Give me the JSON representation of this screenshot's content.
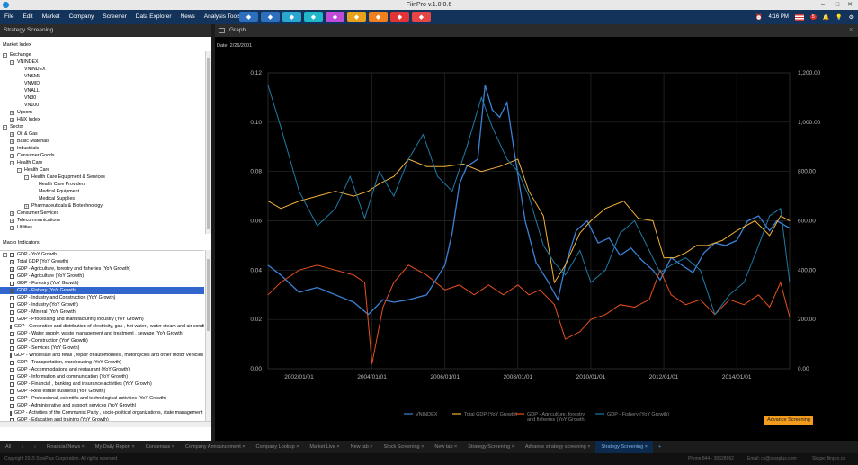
{
  "app": {
    "title": "FiinPro v.1.0.0.6"
  },
  "menu": [
    "File",
    "Edit",
    "Market",
    "Company",
    "Screener",
    "Data Explorer",
    "News",
    "Analysis Tools"
  ],
  "header": {
    "time": "4:16 PM",
    "notification_count": "5"
  },
  "toolbar": [
    {
      "icon": "refresh-icon",
      "color": "#2d6fbe"
    },
    {
      "icon": "filter-icon",
      "color": "#2d6fbe"
    },
    {
      "icon": "chart-icon",
      "color": "#2aa7d0"
    },
    {
      "icon": "monitor-icon",
      "color": "#1fb7c9"
    },
    {
      "icon": "people-icon",
      "color": "#c04bd8"
    },
    {
      "icon": "factory-icon",
      "color": "#e8a11a"
    },
    {
      "icon": "document-icon",
      "color": "#f07f1d"
    },
    {
      "icon": "target-icon",
      "color": "#e23434"
    },
    {
      "icon": "gift-icon",
      "color": "#e64545"
    }
  ],
  "left_panel": {
    "title": "Strategy Screening",
    "market_index_label": "Market Index",
    "macro_label": "Macro Indicators",
    "market_tree": [
      {
        "label": "Exchange",
        "level": 0,
        "exp": "-"
      },
      {
        "label": "VNINDEX",
        "level": 1,
        "exp": "-"
      },
      {
        "label": "VNINDEX",
        "level": 2,
        "exp": ""
      },
      {
        "label": "VNSML",
        "level": 2,
        "exp": ""
      },
      {
        "label": "VNMID",
        "level": 2,
        "exp": ""
      },
      {
        "label": "VNALL",
        "level": 2,
        "exp": ""
      },
      {
        "label": "VN30",
        "level": 2,
        "exp": ""
      },
      {
        "label": "VN100",
        "level": 2,
        "exp": ""
      },
      {
        "label": "Upcom",
        "level": 1,
        "exp": "+"
      },
      {
        "label": "HNX Index",
        "level": 1,
        "exp": "+"
      },
      {
        "label": "Sector",
        "level": 0,
        "exp": "-"
      },
      {
        "label": "Oil & Gas",
        "level": 1,
        "exp": "+"
      },
      {
        "label": "Basic Materials",
        "level": 1,
        "exp": "+"
      },
      {
        "label": "Industrials",
        "level": 1,
        "exp": "+"
      },
      {
        "label": "Consumer Goods",
        "level": 1,
        "exp": "+"
      },
      {
        "label": "Health Care",
        "level": 1,
        "exp": "-"
      },
      {
        "label": "Health Care",
        "level": 2,
        "exp": "-"
      },
      {
        "label": "Health Care Equipment & Services",
        "level": 3,
        "exp": "-"
      },
      {
        "label": "Health Care Providers",
        "level": 4,
        "exp": ""
      },
      {
        "label": "Medical Equipment",
        "level": 4,
        "exp": ""
      },
      {
        "label": "Medical Supplies",
        "level": 4,
        "exp": ""
      },
      {
        "label": "Pharmaceuticals & Biotechnology",
        "level": 3,
        "exp": "+"
      },
      {
        "label": "Consumer Services",
        "level": 1,
        "exp": "+"
      },
      {
        "label": "Telecommunications",
        "level": 1,
        "exp": "+"
      },
      {
        "label": "Utilities",
        "level": 1,
        "exp": "+"
      }
    ],
    "macro_tree": [
      {
        "label": "GDP - YoY Growth",
        "level": 0,
        "exp": "-",
        "cb": ""
      },
      {
        "label": "Total GDP (YoY Growth)",
        "level": 1,
        "cb": "✓"
      },
      {
        "label": "GDP - Agriculture, forestry and fisheries (YoY Growth)",
        "level": 1,
        "cb": "✓"
      },
      {
        "label": "GDP - Agriculture (YoY Growth)",
        "level": 1,
        "cb": ""
      },
      {
        "label": "GDP - Forestry (YoY Growth)",
        "level": 1,
        "cb": ""
      },
      {
        "label": "GDP - Fishery (YoY Growth)",
        "level": 1,
        "cb": "✓",
        "sel": true
      },
      {
        "label": "GDP - Industry and Construction (YoY Growth)",
        "level": 1,
        "cb": ""
      },
      {
        "label": "GDP - Industry (YoY Growth)",
        "level": 1,
        "cb": ""
      },
      {
        "label": "GDP - Mineral (YoY Growth)",
        "level": 1,
        "cb": ""
      },
      {
        "label": "GDP - Processing and manufacturing industry (YoY Growth)",
        "level": 1,
        "cb": ""
      },
      {
        "label": "GDP - Generation and distribution of electricity, gas , hot water , water steam and air conditioning (YoY Growth)",
        "level": 1,
        "cb": ""
      },
      {
        "label": "GDP - Water supply, waste management and treatment , sewage (YoY Growth)",
        "level": 1,
        "cb": ""
      },
      {
        "label": "GDP - Construction (YoY Growth)",
        "level": 1,
        "cb": ""
      },
      {
        "label": "GDP - Services (YoY Growth)",
        "level": 1,
        "cb": ""
      },
      {
        "label": "GDP - Wholesale and retail , repair of automobiles , motorcycles and other motor vehicles (YoY Growth)",
        "level": 1,
        "cb": ""
      },
      {
        "label": "GDP - Transportation, warehousing (YoY Growth)",
        "level": 1,
        "cb": ""
      },
      {
        "label": "GDP - Accommodations and restaurant (YoY Growth)",
        "level": 1,
        "cb": ""
      },
      {
        "label": "GDP - Information and communication (YoY Growth)",
        "level": 1,
        "cb": ""
      },
      {
        "label": "GDP - Financial , banking and insurance activities (YoY Growth)",
        "level": 1,
        "cb": ""
      },
      {
        "label": "GDP - Real estate business (YoY Growth)",
        "level": 1,
        "cb": ""
      },
      {
        "label": "GDP - Professional, scientific and technological activities (YoY Growth)",
        "level": 1,
        "cb": ""
      },
      {
        "label": "GDP - Administrative and support services (YoY Growth)",
        "level": 1,
        "cb": ""
      },
      {
        "label": "GDP - Activities of the Communist Party , socio-political organizations, state management (YoY Growth)",
        "level": 1,
        "cb": ""
      },
      {
        "label": "GDP - Education and training (YoY Growth)",
        "level": 1,
        "cb": ""
      }
    ]
  },
  "graph": {
    "title": "Graph",
    "date": "Date: 2/26/2001",
    "adv_button": "Advance Screening"
  },
  "chart_data": {
    "type": "line",
    "x_ticks": [
      "2002/01/01",
      "2004/01/01",
      "2006/01/01",
      "2008/01/01",
      "2010/01/01",
      "2012/01/01",
      "2014/01/01"
    ],
    "y_left_ticks": [
      "0.00",
      "0.02",
      "0.04",
      "0.06",
      "0.08",
      "0.10",
      "0.12"
    ],
    "y_right_ticks": [
      "0.00",
      "200.00",
      "400.00",
      "600.00",
      "800.00",
      "1,000.00",
      "1,200.00"
    ],
    "y_left_range": [
      0,
      0.12
    ],
    "y_right_range": [
      0,
      1200
    ],
    "x_range": [
      2001.15,
      2015.45
    ],
    "grid": true,
    "legend_position": "bottom",
    "series": [
      {
        "name": "VNINDEX",
        "axis": "right",
        "color": "#3b82d6",
        "points": [
          [
            2001.15,
            420
          ],
          [
            2001.5,
            380
          ],
          [
            2002.0,
            310
          ],
          [
            2002.5,
            330
          ],
          [
            2003.0,
            300
          ],
          [
            2003.5,
            270
          ],
          [
            2003.9,
            220
          ],
          [
            2004.1,
            250
          ],
          [
            2004.3,
            280
          ],
          [
            2004.6,
            270
          ],
          [
            2005.0,
            280
          ],
          [
            2005.5,
            300
          ],
          [
            2006.0,
            420
          ],
          [
            2006.2,
            550
          ],
          [
            2006.4,
            750
          ],
          [
            2006.6,
            820
          ],
          [
            2006.9,
            850
          ],
          [
            2007.1,
            1150
          ],
          [
            2007.3,
            1050
          ],
          [
            2007.5,
            1020
          ],
          [
            2007.7,
            1080
          ],
          [
            2007.9,
            880
          ],
          [
            2008.2,
            600
          ],
          [
            2008.5,
            430
          ],
          [
            2008.8,
            360
          ],
          [
            2009.1,
            280
          ],
          [
            2009.3,
            420
          ],
          [
            2009.6,
            560
          ],
          [
            2009.9,
            600
          ],
          [
            2010.2,
            510
          ],
          [
            2010.5,
            530
          ],
          [
            2010.8,
            460
          ],
          [
            2011.1,
            490
          ],
          [
            2011.4,
            440
          ],
          [
            2011.7,
            400
          ],
          [
            2011.9,
            360
          ],
          [
            2012.2,
            450
          ],
          [
            2012.5,
            420
          ],
          [
            2012.8,
            390
          ],
          [
            2013.1,
            470
          ],
          [
            2013.4,
            510
          ],
          [
            2013.7,
            500
          ],
          [
            2014.0,
            520
          ],
          [
            2014.3,
            600
          ],
          [
            2014.6,
            620
          ],
          [
            2014.9,
            560
          ],
          [
            2015.1,
            600
          ],
          [
            2015.45,
            570
          ]
        ]
      },
      {
        "name": "Total GDP (YoY Growth)",
        "axis": "left",
        "color": "#f3b23a",
        "points": [
          [
            2001.15,
            0.068
          ],
          [
            2001.5,
            0.065
          ],
          [
            2002.0,
            0.068
          ],
          [
            2002.5,
            0.07
          ],
          [
            2003.0,
            0.072
          ],
          [
            2003.5,
            0.07
          ],
          [
            2003.9,
            0.072
          ],
          [
            2004.2,
            0.075
          ],
          [
            2004.6,
            0.078
          ],
          [
            2005.0,
            0.085
          ],
          [
            2005.5,
            0.082
          ],
          [
            2006.0,
            0.082
          ],
          [
            2006.5,
            0.083
          ],
          [
            2007.0,
            0.08
          ],
          [
            2007.5,
            0.082
          ],
          [
            2008.0,
            0.085
          ],
          [
            2008.3,
            0.072
          ],
          [
            2008.7,
            0.062
          ],
          [
            2009.0,
            0.035
          ],
          [
            2009.3,
            0.042
          ],
          [
            2009.7,
            0.055
          ],
          [
            2010.0,
            0.06
          ],
          [
            2010.4,
            0.065
          ],
          [
            2010.9,
            0.068
          ],
          [
            2011.3,
            0.061
          ],
          [
            2011.7,
            0.06
          ],
          [
            2012.0,
            0.045
          ],
          [
            2012.3,
            0.045
          ],
          [
            2012.6,
            0.047
          ],
          [
            2012.9,
            0.05
          ],
          [
            2013.2,
            0.05
          ],
          [
            2013.6,
            0.052
          ],
          [
            2014.0,
            0.056
          ],
          [
            2014.5,
            0.06
          ],
          [
            2014.9,
            0.054
          ],
          [
            2015.2,
            0.062
          ],
          [
            2015.45,
            0.06
          ]
        ]
      },
      {
        "name": "GDP - Agriculture, forestry and fisheries (YoY Growth)",
        "axis": "left",
        "color": "#e8501f",
        "points": [
          [
            2001.15,
            0.03
          ],
          [
            2001.5,
            0.035
          ],
          [
            2002.0,
            0.04
          ],
          [
            2002.5,
            0.042
          ],
          [
            2003.0,
            0.04
          ],
          [
            2003.5,
            0.038
          ],
          [
            2003.8,
            0.035
          ],
          [
            2004.0,
            0.002
          ],
          [
            2004.3,
            0.025
          ],
          [
            2004.6,
            0.035
          ],
          [
            2005.0,
            0.042
          ],
          [
            2005.5,
            0.038
          ],
          [
            2006.0,
            0.032
          ],
          [
            2006.4,
            0.034
          ],
          [
            2006.8,
            0.03
          ],
          [
            2007.2,
            0.034
          ],
          [
            2007.6,
            0.03
          ],
          [
            2008.0,
            0.034
          ],
          [
            2008.3,
            0.03
          ],
          [
            2008.6,
            0.032
          ],
          [
            2009.0,
            0.026
          ],
          [
            2009.3,
            0.012
          ],
          [
            2009.7,
            0.015
          ],
          [
            2010.0,
            0.02
          ],
          [
            2010.4,
            0.022
          ],
          [
            2010.8,
            0.026
          ],
          [
            2011.2,
            0.025
          ],
          [
            2011.6,
            0.028
          ],
          [
            2011.9,
            0.04
          ],
          [
            2012.2,
            0.03
          ],
          [
            2012.6,
            0.026
          ],
          [
            2013.0,
            0.028
          ],
          [
            2013.4,
            0.022
          ],
          [
            2013.8,
            0.028
          ],
          [
            2014.2,
            0.026
          ],
          [
            2014.6,
            0.03
          ],
          [
            2014.9,
            0.025
          ],
          [
            2015.2,
            0.035
          ],
          [
            2015.45,
            0.021
          ]
        ]
      },
      {
        "name": "GDP - Fishery (YoY Growth)",
        "axis": "left",
        "color": "#1f7ba8",
        "points": [
          [
            2001.15,
            0.115
          ],
          [
            2001.5,
            0.098
          ],
          [
            2002.0,
            0.072
          ],
          [
            2002.5,
            0.058
          ],
          [
            2003.0,
            0.065
          ],
          [
            2003.4,
            0.078
          ],
          [
            2003.8,
            0.061
          ],
          [
            2004.2,
            0.08
          ],
          [
            2004.6,
            0.07
          ],
          [
            2005.0,
            0.085
          ],
          [
            2005.4,
            0.095
          ],
          [
            2005.8,
            0.078
          ],
          [
            2006.2,
            0.072
          ],
          [
            2006.6,
            0.09
          ],
          [
            2007.0,
            0.11
          ],
          [
            2007.3,
            0.098
          ],
          [
            2007.7,
            0.085
          ],
          [
            2008.0,
            0.08
          ],
          [
            2008.3,
            0.07
          ],
          [
            2008.7,
            0.05
          ],
          [
            2009.0,
            0.043
          ],
          [
            2009.3,
            0.038
          ],
          [
            2009.7,
            0.048
          ],
          [
            2010.0,
            0.035
          ],
          [
            2010.4,
            0.04
          ],
          [
            2010.8,
            0.055
          ],
          [
            2011.2,
            0.06
          ],
          [
            2011.6,
            0.048
          ],
          [
            2011.9,
            0.039
          ],
          [
            2012.2,
            0.042
          ],
          [
            2012.6,
            0.045
          ],
          [
            2013.0,
            0.04
          ],
          [
            2013.4,
            0.022
          ],
          [
            2013.8,
            0.03
          ],
          [
            2014.2,
            0.035
          ],
          [
            2014.6,
            0.05
          ],
          [
            2014.9,
            0.062
          ],
          [
            2015.2,
            0.065
          ],
          [
            2015.45,
            0.035
          ]
        ]
      }
    ]
  },
  "bottom_tabs": [
    "All",
    "Financial News",
    "My Daily Report",
    "Consensus",
    "Company Announcement",
    "Company Lookup",
    "Market Live",
    "New tab",
    "Stock Screening",
    "New tab",
    "Strategy Screening",
    "Advance strategy screening",
    "Strategy Screening"
  ],
  "status": {
    "copyright": "Copyright 2015 StoxPlus Corporation. All rights reserved.",
    "phone": "Phone 844 - 35628962",
    "email": "Email: cs@stoxplus.com",
    "skype": "Skype: fiinpro.cs"
  }
}
